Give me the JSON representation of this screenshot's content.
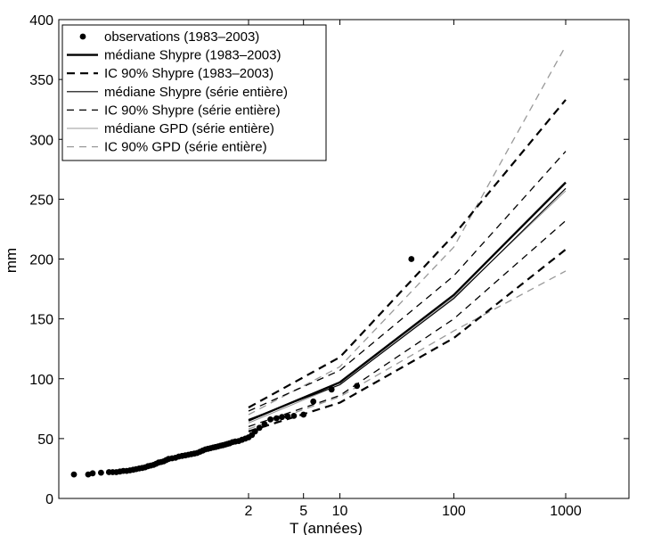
{
  "chart_data": {
    "type": "line",
    "xlabel": "T (années)",
    "ylabel": "mm",
    "xscale": "gumbel-reduced-variate",
    "xlim": [
      0.4,
      6000
    ],
    "ylim": [
      0,
      400
    ],
    "grid": false,
    "legend_position": "top-left",
    "x_ticks": [
      {
        "value": 2,
        "label": "2"
      },
      {
        "value": 5,
        "label": "5"
      },
      {
        "value": 10,
        "label": "10"
      },
      {
        "value": 100,
        "label": "100"
      },
      {
        "value": 1000,
        "label": "1000"
      }
    ],
    "y_ticks": [
      {
        "value": 0,
        "label": "0"
      },
      {
        "value": 50,
        "label": "50"
      },
      {
        "value": 100,
        "label": "100"
      },
      {
        "value": 150,
        "label": "150"
      },
      {
        "value": 200,
        "label": "200"
      },
      {
        "value": 250,
        "label": "250"
      },
      {
        "value": 300,
        "label": "300"
      },
      {
        "value": 350,
        "label": "350"
      },
      {
        "value": 400,
        "label": "400"
      }
    ],
    "observations": {
      "name": "observations  (1983–2003)",
      "T": [
        0.5,
        0.56,
        0.58,
        0.62,
        0.66,
        0.68,
        0.7,
        0.72,
        0.74,
        0.76,
        0.78,
        0.8,
        0.82,
        0.84,
        0.86,
        0.88,
        0.9,
        0.92,
        0.94,
        0.96,
        0.98,
        1.0,
        1.02,
        1.04,
        1.06,
        1.09,
        1.12,
        1.15,
        1.18,
        1.21,
        1.24,
        1.27,
        1.3,
        1.33,
        1.36,
        1.39,
        1.42,
        1.45,
        1.48,
        1.51,
        1.54,
        1.57,
        1.6,
        1.63,
        1.66,
        1.69,
        1.72,
        1.76,
        1.8,
        1.85,
        1.9,
        1.95,
        2.0,
        2.1,
        2.2,
        2.35,
        2.55,
        2.8,
        3.1,
        3.4,
        3.75,
        4.2,
        5.0,
        6.0,
        8.5,
        14.0,
        42.0
      ],
      "values": [
        20,
        20,
        21,
        21.5,
        22,
        22,
        22,
        22.5,
        23,
        23,
        23.5,
        24,
        24.5,
        25,
        25.5,
        26,
        27,
        27.5,
        28,
        29,
        30,
        30.5,
        31,
        32,
        33,
        33.5,
        34,
        35,
        35.5,
        36,
        36.5,
        37,
        37.5,
        38,
        39,
        40,
        41,
        41.5,
        42,
        42.5,
        43,
        43.5,
        44,
        44.5,
        45,
        45.5,
        46,
        47,
        47.5,
        48,
        49,
        50,
        51,
        53,
        56,
        59,
        62,
        66,
        67,
        68,
        68.5,
        69,
        70,
        81,
        91,
        94,
        200
      ]
    },
    "series": [
      {
        "name": "médiane Shypre (1983–2003)",
        "style": "solid-thick",
        "color": "#000000",
        "T": [
          2,
          10,
          100,
          1000
        ],
        "values": [
          65,
          97,
          170,
          264
        ]
      },
      {
        "name": "IC 90% Shypre (1983–2003)",
        "style": "dashed-thick",
        "color": "#000000",
        "bound": "upper",
        "T": [
          2,
          10,
          100,
          1000
        ],
        "values": [
          76,
          118,
          220,
          333
        ]
      },
      {
        "name": "IC 90% Shypre (1983–2003)",
        "style": "dashed-thick",
        "color": "#000000",
        "bound": "lower",
        "T": [
          2,
          10,
          100,
          1000
        ],
        "values": [
          56,
          80,
          134,
          208
        ]
      },
      {
        "name": "médiane Shypre (série entière)",
        "style": "solid-thin",
        "color": "#000000",
        "T": [
          2,
          10,
          100,
          1000
        ],
        "values": [
          66,
          95,
          167,
          259
        ]
      },
      {
        "name": "IC 90% Shypre (série entière)",
        "style": "dashed-thin",
        "color": "#000000",
        "bound": "upper",
        "T": [
          2,
          10,
          100,
          1000
        ],
        "values": [
          73,
          107,
          186,
          290
        ]
      },
      {
        "name": "IC 90% Shypre (série entière)",
        "style": "dashed-thin",
        "color": "#000000",
        "bound": "lower",
        "T": [
          2,
          10,
          100,
          1000
        ],
        "values": [
          60,
          86,
          150,
          232
        ]
      },
      {
        "name": "médiane GPD (série entière)",
        "style": "solid-thin",
        "color": "#999999",
        "T": [
          2,
          10,
          100,
          1000
        ],
        "values": [
          63,
          95,
          168,
          257
        ]
      },
      {
        "name": "IC 90% GPD (série entière)",
        "style": "dashed-thin",
        "color": "#999999",
        "bound": "upper",
        "T": [
          2,
          10,
          100,
          1000
        ],
        "values": [
          70,
          110,
          210,
          378
        ]
      },
      {
        "name": "IC 90% GPD (série entière)",
        "style": "dashed-thin",
        "color": "#999999",
        "bound": "lower",
        "T": [
          2,
          10,
          100,
          1000
        ],
        "values": [
          58,
          85,
          140,
          190
        ]
      }
    ],
    "legend": [
      {
        "label": "observations  (1983–2003)",
        "style": "dot",
        "color": "#000000"
      },
      {
        "label": "médiane Shypre (1983–2003)",
        "style": "solid-thick",
        "color": "#000000"
      },
      {
        "label": "IC 90% Shypre (1983–2003)",
        "style": "dashed-thick",
        "color": "#000000"
      },
      {
        "label": "médiane Shypre (série entière)",
        "style": "solid-thin",
        "color": "#000000"
      },
      {
        "label": "IC 90% Shypre (série entière)",
        "style": "dashed-thin",
        "color": "#000000"
      },
      {
        "label": "médiane GPD (série entière)",
        "style": "solid-thin",
        "color": "#999999"
      },
      {
        "label": "IC 90% GPD (série entière)",
        "style": "dashed-thin",
        "color": "#999999"
      }
    ]
  }
}
